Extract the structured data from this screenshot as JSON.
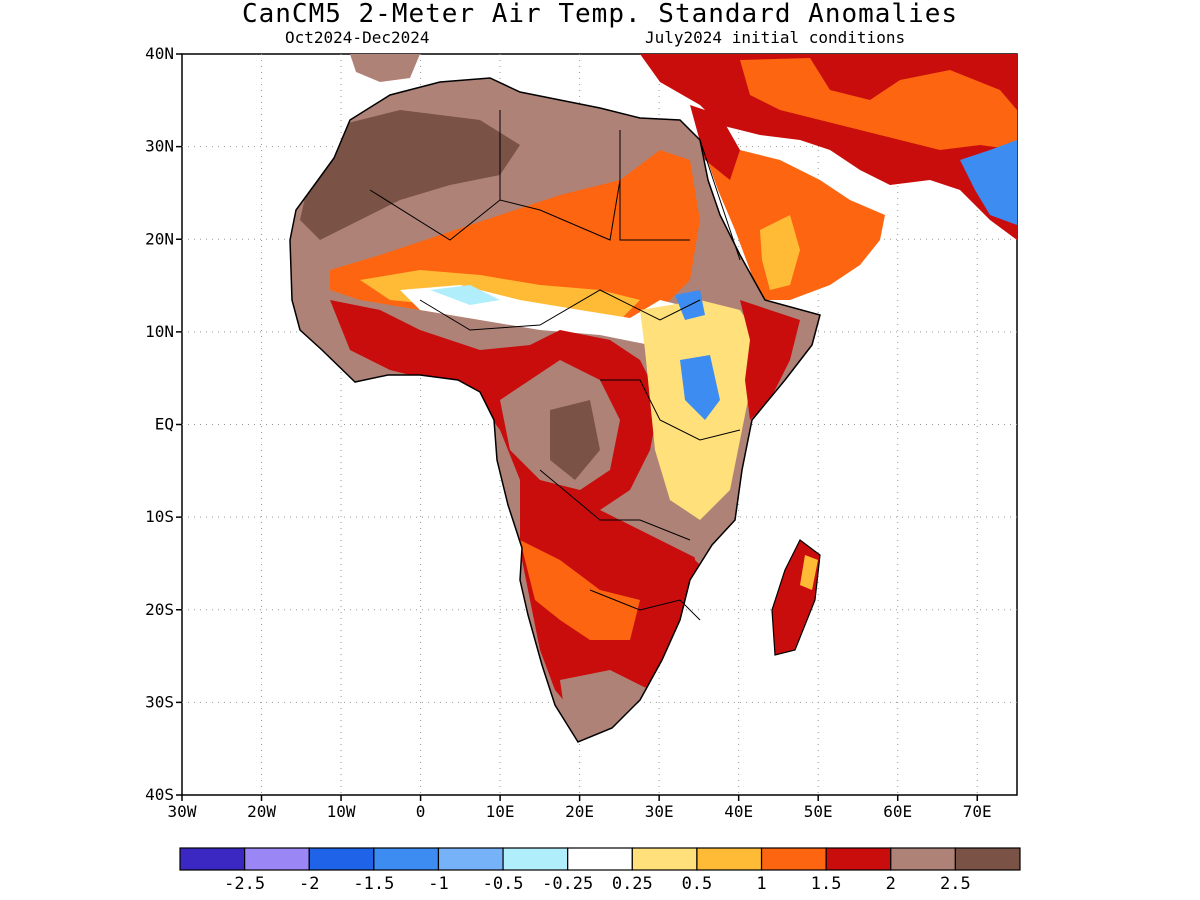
{
  "header": {
    "title": "CanCM5 2-Meter Air Temp. Standard Anomalies",
    "period": "Oct2024-Dec2024",
    "init": "July2024 initial conditions"
  },
  "axes": {
    "lat_labels": [
      "40N",
      "30N",
      "20N",
      "10N",
      "EQ",
      "10S",
      "20S",
      "30S",
      "40S"
    ],
    "lat_values": [
      40,
      30,
      20,
      10,
      0,
      -10,
      -20,
      -30,
      -40
    ],
    "lon_labels": [
      "30W",
      "20W",
      "10W",
      "0",
      "10E",
      "20E",
      "30E",
      "40E",
      "50E",
      "60E",
      "70E"
    ],
    "lon_values": [
      -30,
      -20,
      -10,
      0,
      10,
      20,
      30,
      40,
      50,
      60,
      70
    ],
    "lon_range": [
      -30,
      75
    ],
    "lat_range": [
      -40,
      40
    ]
  },
  "colorbar": {
    "colors": [
      "#3b27c1",
      "#9a86f5",
      "#1e63e8",
      "#3d8cf2",
      "#76b2f7",
      "#b0eefc",
      "#ffffff",
      "#ffe07a",
      "#ffbb35",
      "#fd6510",
      "#c90d0d",
      "#af8278",
      "#7a5246"
    ],
    "labels": [
      "-2.5",
      "-2",
      "-1.5",
      "-1",
      "-0.5",
      "-0.25",
      "0.25",
      "0.5",
      "1",
      "1.5",
      "2",
      "2.5"
    ]
  },
  "legend_categories": {
    "c_land": "#af8278",
    "c_dark": "#7a5246",
    "c_red": "#c90d0d",
    "c_orange": "#fd6510",
    "c_light_orange": "#ffbb35",
    "c_yellow": "#ffe07a",
    "c_white": "#ffffff",
    "c_cyan": "#b0eefc",
    "c_blue": "#3d8cf2"
  }
}
